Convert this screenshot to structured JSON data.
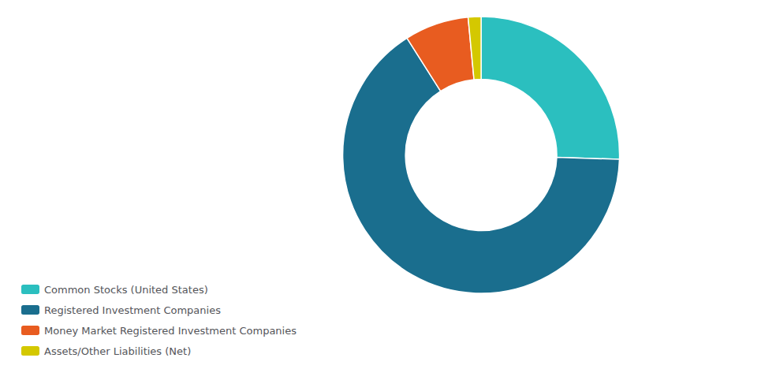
{
  "chart_data": {
    "type": "donut",
    "categories": [
      "Common Stocks (United States)",
      "Registered Investment Companies",
      "Money Market Registered Investment Companies",
      "Assets/Other Liabilities (Net)"
    ],
    "values": [
      25.5,
      65.5,
      7.5,
      1.5
    ],
    "colors": [
      "#2bbfbf",
      "#1a6e8e",
      "#e85c20",
      "#d4c800"
    ],
    "legend": "lower left"
  }
}
